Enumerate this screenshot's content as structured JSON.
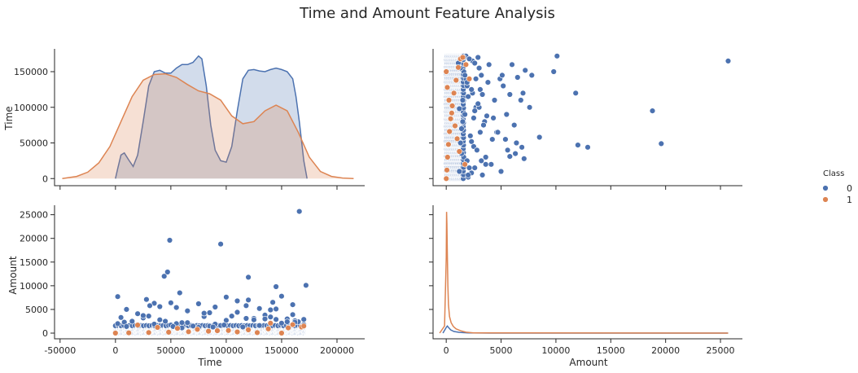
{
  "chart_data": {
    "title": "Time and Amount Feature Analysis",
    "type": "pairplot",
    "variables": [
      "Time",
      "Amount"
    ],
    "hue_variable": "Class",
    "legend": {
      "title": "Class",
      "placement": "right",
      "entries": [
        {
          "label": "0",
          "color": "#4c72b0"
        },
        {
          "label": "1",
          "color": "#dd8452"
        }
      ]
    },
    "panels": [
      {
        "id": "time_time",
        "type": "area",
        "ylabel": "Time",
        "xlim": [
          -55000,
          225000
        ],
        "ylim": [
          -10000,
          182000
        ],
        "yticks": [
          0,
          50000,
          100000,
          150000
        ],
        "note": "diagonal KDE (density curves drawn on Time axis scale)",
        "series": [
          {
            "name": "0",
            "color": "#4c72b0",
            "x": [
              0,
              2000,
              5000,
              8000,
              12000,
              16000,
              20000,
              25000,
              30000,
              35000,
              40000,
              45000,
              50000,
              55000,
              60000,
              65000,
              70000,
              75000,
              78000,
              82000,
              86000,
              90000,
              95000,
              100000,
              105000,
              110000,
              115000,
              120000,
              125000,
              130000,
              135000,
              140000,
              145000,
              150000,
              155000,
              160000,
              163000,
              166000,
              170000,
              173000
            ],
            "y": [
              0,
              14000,
              33000,
              36000,
              26000,
              17000,
              33000,
              80000,
              130000,
              150000,
              152000,
              148000,
              148000,
              155000,
              160000,
              160000,
              163000,
              172000,
              168000,
              130000,
              75000,
              40000,
              25000,
              23000,
              45000,
              95000,
              140000,
              152000,
              153000,
              151000,
              150000,
              153000,
              155000,
              153000,
              150000,
              140000,
              115000,
              80000,
              25000,
              0
            ]
          },
          {
            "name": "1",
            "color": "#dd8452",
            "x": [
              -48000,
              -35000,
              -25000,
              -15000,
              -5000,
              5000,
              15000,
              25000,
              35000,
              45000,
              55000,
              65000,
              75000,
              85000,
              95000,
              105000,
              115000,
              125000,
              135000,
              145000,
              155000,
              165000,
              175000,
              185000,
              195000,
              205000,
              215000
            ],
            "y": [
              0,
              3000,
              9000,
              22000,
              45000,
              80000,
              115000,
              138000,
              146000,
              147000,
              142000,
              132000,
              123000,
              119000,
              110000,
              88000,
              77000,
              80000,
              95000,
              103000,
              95000,
              65000,
              30000,
              10000,
              3000,
              800,
              0
            ]
          }
        ]
      },
      {
        "id": "amount_time",
        "type": "scatter",
        "xlim": [
          -1200,
          27000
        ],
        "ylim": [
          -10000,
          182000
        ],
        "yticks": [
          0,
          50000,
          100000,
          150000
        ],
        "series": [
          {
            "name": "0",
            "color": "#4c72b0",
            "x": [
              10100,
              25700,
              11800,
              18800,
              19600,
              12000,
              12900,
              9800,
              7800,
              7200,
              8500,
              6900,
              6300,
              5800,
              7100,
              6200,
              5500,
              6800,
              5200,
              4900,
              6000,
              7600,
              5400,
              4600,
              6500,
              5800,
              4300,
              7000,
              5100,
              3900,
              4700,
              5600,
              6400,
              3600,
              4100,
              5000,
              3300,
              4400,
              3800,
              3000,
              3500,
              2800,
              3200,
              2600,
              2900,
              2400,
              3100,
              2700,
              2200,
              2500,
              2000,
              2300,
              1800,
              2100,
              1600,
              1900,
              1500,
              1700,
              1400,
              1300,
              1600,
              1200,
              2000,
              2600,
              3400,
              4200,
              1100,
              1800,
              2400,
              3000,
              1500,
              2200,
              2800,
              3600,
              1300,
              1900,
              2500,
              3100,
              1700,
              2300,
              2900,
              3700,
              1400,
              2100,
              2700,
              3300,
              1200,
              1600,
              2000,
              2600,
              3200,
              1900,
              2300
            ],
            "y": [
              172000,
              165000,
              120000,
              95000,
              49000,
              47000,
              44000,
              150000,
              145000,
              152000,
              58000,
              44000,
              35000,
              31000,
              28000,
              75000,
              90000,
              110000,
              130000,
              140000,
              160000,
              100000,
              55000,
              65000,
              142000,
              118000,
              85000,
              120000,
              145000,
              160000,
              65000,
              40000,
              50000,
              30000,
              20000,
              10000,
              5000,
              110000,
              135000,
              155000,
              80000,
              40000,
              25000,
              15000,
              170000,
              165000,
              125000,
              100000,
              60000,
              45000,
              2000,
              8000,
              172000,
              168000,
              150000,
              130000,
              110000,
              90000,
              70000,
              50000,
              30000,
              10000,
              115000,
              95000,
              75000,
              55000,
              162000,
              140000,
              120000,
              100000,
              80000,
              60000,
              40000,
              20000,
              155000,
              135000,
              85000,
              65000,
              145000,
              125000,
              105000,
              88000,
              35000,
              15000,
              140000,
              118000,
              98000,
              170000,
              5000,
              162000,
              145000,
              25000,
              52000
            ],
            "baseline_band": {
              "x_from": 0,
              "x_to": 1600,
              "y_from": 0,
              "y_to": 172000
            }
          },
          {
            "name": "1",
            "color": "#dd8452",
            "x": [
              0,
              60,
              120,
              200,
              300,
              400,
              550,
              700,
              900,
              1100,
              1300,
              1500,
              1800,
              2100,
              0,
              100,
              250,
              500,
              800,
              1000,
              1200,
              1700
            ],
            "y": [
              0,
              12000,
              30000,
              48000,
              66000,
              84000,
              102000,
              120000,
              138000,
              156000,
              168000,
              170000,
              160000,
              140000,
              150000,
              128000,
              110000,
              92000,
              74000,
              56000,
              38000,
              20000
            ]
          }
        ]
      },
      {
        "id": "time_amount",
        "type": "scatter",
        "xlabel": "Time",
        "ylabel": "Amount",
        "xlim": [
          -55000,
          225000
        ],
        "ylim": [
          -1200,
          27000
        ],
        "xticks": [
          -50000,
          0,
          50000,
          100000,
          150000,
          200000
        ],
        "yticks": [
          0,
          5000,
          10000,
          15000,
          20000,
          25000
        ],
        "series": [
          {
            "name": "0",
            "color": "#4c72b0",
            "x": [
              166000,
              172000,
              49000,
              95000,
              47000,
              120000,
              44000,
              145000,
              150000,
              58000,
              2000,
              35000,
              31000,
              28000,
              75000,
              90000,
              110000,
              130000,
              140000,
              160000,
              100000,
              55000,
              65000,
              142000,
              118000,
              85000,
              120000,
              145000,
              160000,
              65000,
              40000,
              50000,
              30000,
              20000,
              10000,
              5000,
              110000,
              135000,
              155000,
              80000,
              40000,
              25000,
              15000,
              170000,
              165000,
              125000,
              100000,
              60000,
              45000,
              2000,
              8000,
              170000,
              150000,
              130000,
              90000,
              70000,
              50000,
              10000,
              115000,
              95000,
              75000,
              55000,
              162000,
              140000,
              80000,
              60000,
              20000,
              155000,
              135000,
              85000,
              65000,
              125000,
              105000,
              88000,
              35000,
              15000,
              118000,
              98000,
              162000,
              145000,
              25000,
              52000
            ],
            "y": [
              25700,
              10100,
              19600,
              18800,
              12900,
              11800,
              12000,
              9800,
              7800,
              8500,
              7700,
              6300,
              5800,
              7100,
              6200,
              5500,
              6800,
              5200,
              4900,
              6000,
              7600,
              5400,
              4600,
              6500,
              5800,
              4300,
              7000,
              5100,
              3900,
              4700,
              5600,
              6400,
              3600,
              4100,
              5000,
              3300,
              4400,
              3800,
              3000,
              3500,
              2800,
              3200,
              2600,
              2900,
              2400,
              3100,
              2700,
              2200,
              2500,
              2000,
              2300,
              1800,
              2100,
              1600,
              1900,
              1500,
              1700,
              1400,
              1300,
              1600,
              1200,
              2000,
              2600,
              3400,
              4200,
              1100,
              1800,
              2400,
              3000,
              1500,
              2200,
              2800,
              3600,
              1300,
              1900,
              2500,
              3100,
              1700,
              2300,
              2900,
              3700,
              1400
            ],
            "baseline_band": {
              "x_from": 0,
              "x_to": 172000,
              "y_from": 0,
              "y_to": 1600
            }
          },
          {
            "name": "1",
            "color": "#dd8452",
            "x": [
              0,
              12000,
              30000,
              48000,
              66000,
              84000,
              102000,
              120000,
              138000,
              156000,
              168000,
              170000,
              160000,
              140000,
              150000,
              128000,
              110000,
              92000,
              74000,
              56000,
              38000,
              20000
            ],
            "y": [
              0,
              60,
              120,
              200,
              300,
              400,
              550,
              700,
              900,
              1100,
              1300,
              1500,
              1800,
              2100,
              0,
              100,
              250,
              500,
              800,
              1000,
              1200,
              1700
            ]
          }
        ]
      },
      {
        "id": "amount_amount",
        "type": "line",
        "xlabel": "Amount",
        "xlim": [
          -1200,
          27000
        ],
        "ylim": [
          -1200,
          27000
        ],
        "xticks": [
          0,
          5000,
          10000,
          15000,
          20000,
          25000
        ],
        "yticks": [
          0,
          5000,
          10000,
          15000,
          20000,
          25000
        ],
        "note": "diagonal KDE (density curves drawn on Amount axis scale)",
        "series": [
          {
            "name": "0",
            "color": "#4c72b0",
            "x": [
              -300,
              0,
              100,
              200,
              400,
              700,
              1200,
              2000,
              4000,
              10000,
              25700
            ],
            "y": [
              0,
              1200,
              1500,
              1200,
              700,
              350,
              150,
              50,
              10,
              0,
              0
            ]
          },
          {
            "name": "1",
            "color": "#dd8452",
            "x": [
              -600,
              -150,
              0,
              30,
              60,
              100,
              150,
              200,
              300,
              450,
              650,
              900,
              1300,
              1800,
              2500,
              25700
            ],
            "y": [
              0,
              1500,
              16000,
              25600,
              23000,
              17000,
              10000,
              6000,
              3500,
              2200,
              1400,
              900,
              500,
              200,
              50,
              0
            ]
          }
        ]
      }
    ]
  }
}
